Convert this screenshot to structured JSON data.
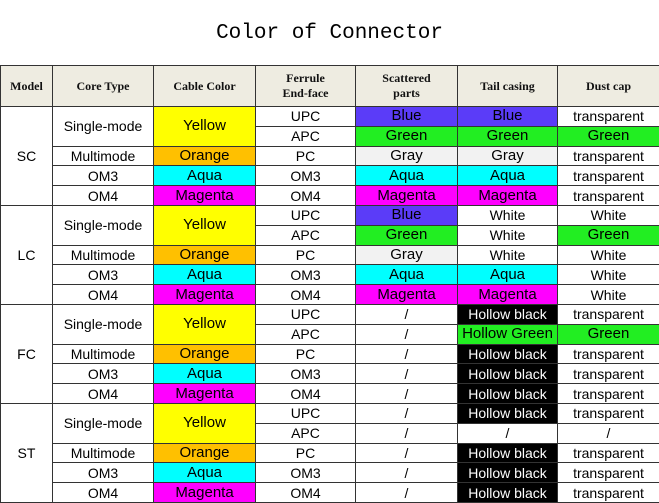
{
  "title": "Color of Connector",
  "headers": [
    "Model",
    "Core Type",
    "Cable Color",
    "Ferrule End-face",
    "Scattered parts",
    "Tail casing",
    "Dust cap"
  ],
  "colors": {
    "Yellow": "#ffff00",
    "Orange": "#ffc000",
    "Aqua": "#00ffff",
    "Magenta": "#ff00ff",
    "Blue": "#5b3cf8",
    "Green": "#22ee22",
    "Gray": "#f2f2f2",
    "Hollow black": "#000000",
    "Hollow Green": "#22ee22"
  },
  "models": [
    {
      "model": "SC",
      "rows": [
        {
          "core": "Single-mode",
          "span": 2,
          "cable": "Yellow",
          "ferrule": "UPC",
          "scattered": "Blue",
          "tail": "Blue",
          "dust": "transparent"
        },
        {
          "ferrule": "APC",
          "scattered": "Green",
          "tail": "Green",
          "dust": "Green"
        },
        {
          "core": "Multimode",
          "cable": "Orange",
          "ferrule": "PC",
          "scattered": "Gray",
          "tail": "Gray",
          "dust": "transparent"
        },
        {
          "core": "OM3",
          "cable": "Aqua",
          "ferrule": "OM3",
          "scattered": "Aqua",
          "tail": "Aqua",
          "dust": "transparent"
        },
        {
          "core": "OM4",
          "cable": "Magenta",
          "ferrule": "OM4",
          "scattered": "Magenta",
          "tail": "Magenta",
          "dust": "transparent"
        }
      ]
    },
    {
      "model": "LC",
      "rows": [
        {
          "core": "Single-mode",
          "span": 2,
          "cable": "Yellow",
          "ferrule": "UPC",
          "scattered": "Blue",
          "tail": "White",
          "dust": "White"
        },
        {
          "ferrule": "APC",
          "scattered": "Green",
          "tail": "White",
          "dust": "Green"
        },
        {
          "core": "Multimode",
          "cable": "Orange",
          "ferrule": "PC",
          "scattered": "Gray",
          "tail": "White",
          "dust": "White"
        },
        {
          "core": "OM3",
          "cable": "Aqua",
          "ferrule": "OM3",
          "scattered": "Aqua",
          "tail": "Aqua",
          "dust": "White"
        },
        {
          "core": "OM4",
          "cable": "Magenta",
          "ferrule": "OM4",
          "scattered": "Magenta",
          "tail": "Magenta",
          "dust": "White"
        }
      ]
    },
    {
      "model": "FC",
      "rows": [
        {
          "core": "Single-mode",
          "span": 2,
          "cable": "Yellow",
          "ferrule": "UPC",
          "scattered": "/",
          "tail": "Hollow black",
          "dust": "transparent"
        },
        {
          "ferrule": "APC",
          "scattered": "/",
          "tail": "Hollow Green",
          "dust": "Green"
        },
        {
          "core": "Multimode",
          "cable": "Orange",
          "ferrule": "PC",
          "scattered": "/",
          "tail": "Hollow black",
          "dust": "transparent"
        },
        {
          "core": "OM3",
          "cable": "Aqua",
          "ferrule": "OM3",
          "scattered": "/",
          "tail": "Hollow black",
          "dust": "transparent"
        },
        {
          "core": "OM4",
          "cable": "Magenta",
          "ferrule": "OM4",
          "scattered": "/",
          "tail": "Hollow black",
          "dust": "transparent"
        }
      ]
    },
    {
      "model": "ST",
      "rows": [
        {
          "core": "Single-mode",
          "span": 2,
          "cable": "Yellow",
          "ferrule": "UPC",
          "scattered": "/",
          "tail": "Hollow black",
          "dust": "transparent"
        },
        {
          "ferrule": "APC",
          "scattered": "/",
          "tail": "/",
          "dust": "/"
        },
        {
          "core": "Multimode",
          "cable": "Orange",
          "ferrule": "PC",
          "scattered": "/",
          "tail": "Hollow black",
          "dust": "transparent"
        },
        {
          "core": "OM3",
          "cable": "Aqua",
          "ferrule": "OM3",
          "scattered": "/",
          "tail": "Hollow black",
          "dust": "transparent"
        },
        {
          "core": "OM4",
          "cable": "Magenta",
          "ferrule": "OM4",
          "scattered": "/",
          "tail": "Hollow black",
          "dust": "transparent"
        }
      ]
    }
  ]
}
